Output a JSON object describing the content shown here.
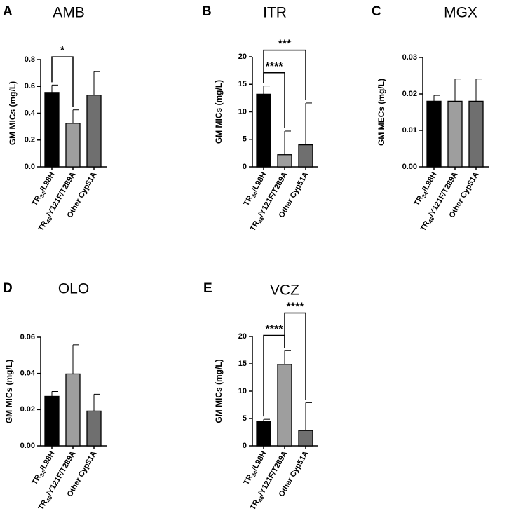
{
  "colors": {
    "bar1": "#000000",
    "bar2": "#9e9e9e",
    "bar3": "#6f6f6f"
  },
  "chart_data": [
    {
      "type": "bar",
      "letter": "A",
      "title": "AMB",
      "ylabel": "GM MICs (mg/L)",
      "ylim": [
        0,
        0.8
      ],
      "yticks": [
        "0.0",
        "0.2",
        "0.4",
        "0.6",
        "0.8"
      ],
      "tick_values": [
        0,
        0.2,
        0.4,
        0.6,
        0.8
      ],
      "categories": [
        {
          "main": "TR",
          "sub": "34",
          "rest": "/L98H"
        },
        {
          "main": "TR",
          "sub": "46",
          "rest": "/Y121F/T289A"
        },
        {
          "main": "Other Cyp51A",
          "sub": "",
          "rest": ""
        }
      ],
      "values": [
        0.555,
        0.325,
        0.535
      ],
      "errors": [
        0.055,
        0.1,
        0.175
      ],
      "significance": [
        {
          "from": 0,
          "to": 1,
          "label": "*",
          "level": 0.82
        }
      ]
    },
    {
      "type": "bar",
      "letter": "B",
      "title": "ITR",
      "ylabel": "GM MICs (mg/L)",
      "ylim": [
        0,
        20
      ],
      "yticks": [
        "0",
        "5",
        "10",
        "15",
        "20"
      ],
      "tick_values": [
        0,
        5,
        10,
        15,
        20
      ],
      "categories": [
        {
          "main": "TR",
          "sub": "34",
          "rest": "/L98H"
        },
        {
          "main": "TR",
          "sub": "46",
          "rest": "/Y121F/T289A"
        },
        {
          "main": "Other Cyp51A",
          "sub": "",
          "rest": ""
        }
      ],
      "values": [
        13.2,
        2.2,
        4.0
      ],
      "errors": [
        1.5,
        4.3,
        7.6
      ],
      "significance": [
        {
          "from": 0,
          "to": 1,
          "label": "****",
          "level": 17.1
        },
        {
          "from": 0,
          "to": 2,
          "label": "***",
          "level": 21.2
        }
      ]
    },
    {
      "type": "bar",
      "letter": "C",
      "title": "MGX",
      "ylabel": "GM MECs (mg/L)",
      "ylim": [
        0,
        0.03
      ],
      "yticks": [
        "0.00",
        "0.01",
        "0.02",
        "0.03"
      ],
      "tick_values": [
        0,
        0.01,
        0.02,
        0.03
      ],
      "categories": [
        {
          "main": "TR",
          "sub": "34",
          "rest": "/L98H"
        },
        {
          "main": "TR",
          "sub": "46",
          "rest": "/Y121F/T289A"
        },
        {
          "main": "Other Cyp51A",
          "sub": "",
          "rest": ""
        }
      ],
      "values": [
        0.018,
        0.018,
        0.018
      ],
      "errors": [
        0.0016,
        0.0061,
        0.0061
      ],
      "significance": []
    },
    {
      "type": "bar",
      "letter": "D",
      "title": "OLO",
      "ylabel": "GM MICs (mg/L)",
      "ylim": [
        0,
        0.06
      ],
      "yticks": [
        "0.00",
        "0.02",
        "0.04",
        "0.06"
      ],
      "tick_values": [
        0,
        0.02,
        0.04,
        0.06
      ],
      "categories": [
        {
          "main": "TR",
          "sub": "34",
          "rest": "/L98H"
        },
        {
          "main": "TR",
          "sub": "46",
          "rest": "/Y121F/T289A"
        },
        {
          "main": "Other Cyp51A",
          "sub": "",
          "rest": ""
        }
      ],
      "values": [
        0.0273,
        0.0397,
        0.0192
      ],
      "errors": [
        0.0027,
        0.0161,
        0.0093
      ],
      "significance": []
    },
    {
      "type": "bar",
      "letter": "E",
      "title": "VCZ",
      "ylabel": "GM MICs (mg/L)",
      "ylim": [
        0,
        20
      ],
      "yticks": [
        "0",
        "5",
        "10",
        "15",
        "20"
      ],
      "tick_values": [
        0,
        5,
        10,
        15,
        20
      ],
      "categories": [
        {
          "main": "TR",
          "sub": "34",
          "rest": "/L98H"
        },
        {
          "main": "TR",
          "sub": "46",
          "rest": "/Y121F/T289A"
        },
        {
          "main": "Other Cyp51A",
          "sub": "",
          "rest": ""
        }
      ],
      "values": [
        4.5,
        14.9,
        2.8
      ],
      "errors": [
        0.35,
        2.5,
        5.1
      ],
      "significance": [
        {
          "from": 0,
          "to": 1,
          "label": "****",
          "level": 20.2
        },
        {
          "from": 1,
          "to": 2,
          "label": "****",
          "level": 24.3
        }
      ]
    }
  ]
}
